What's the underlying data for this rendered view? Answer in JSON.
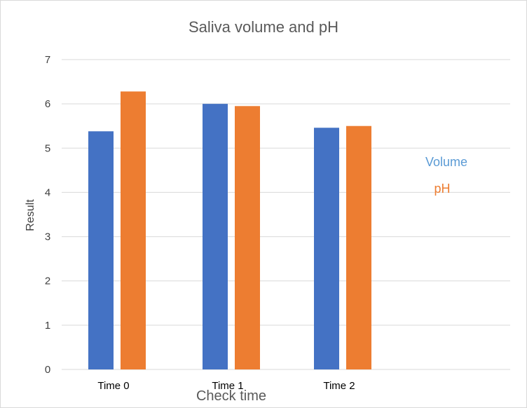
{
  "chart_data": {
    "type": "bar",
    "title": "Saliva volume and pH",
    "xlabel": "Check time",
    "ylabel": "Result",
    "categories": [
      "Time 0",
      "Time 1",
      "Time 2"
    ],
    "series": [
      {
        "name": "Volume",
        "values": [
          5.38,
          6.0,
          5.46
        ],
        "color": "#4472c4"
      },
      {
        "name": "pH",
        "values": [
          6.28,
          5.95,
          5.5
        ],
        "color": "#ed7d31"
      }
    ],
    "ylim": [
      0,
      7
    ],
    "yticks": [
      0,
      1,
      2,
      3,
      4,
      5,
      6,
      7
    ],
    "grid": true,
    "legend_position": "right",
    "legend_colors": [
      "#5b9bd5",
      "#ed7d31"
    ]
  }
}
